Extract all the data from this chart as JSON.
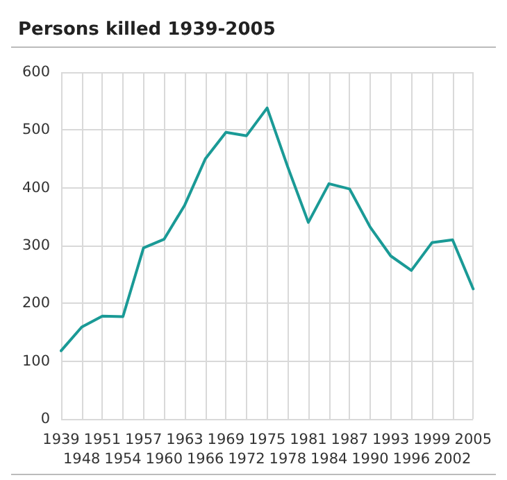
{
  "chart_data": {
    "type": "line",
    "title": "Persons killed 1939-2005",
    "categories": [
      "1939",
      "1948",
      "1951",
      "1954",
      "1957",
      "1960",
      "1963",
      "1966",
      "1969",
      "1972",
      "1975",
      "1978",
      "1981",
      "1984",
      "1987",
      "1990",
      "1993",
      "1996",
      "1999",
      "2002",
      "2005"
    ],
    "series": [
      {
        "color": "#1a9a96",
        "values": [
          118,
          159,
          178,
          177,
          296,
          311,
          370,
          450,
          496,
          490,
          538,
          436,
          340,
          407,
          398,
          332,
          282,
          257,
          305,
          310,
          225
        ]
      }
    ],
    "ylim": [
      0,
      600
    ],
    "yticks": [
      0,
      100,
      200,
      300,
      400,
      500,
      600
    ],
    "grid": true,
    "marker": "none",
    "line_style": "solid"
  }
}
